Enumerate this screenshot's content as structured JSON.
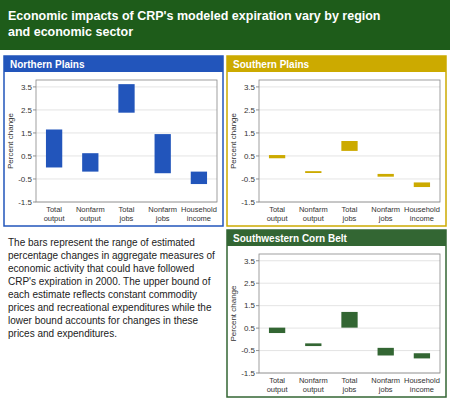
{
  "title": "Economic impacts of CRP's modeled expiration vary by region\nand economic sector",
  "annotations": [
    "The bars represent the range of estimated percentage changes in aggregate measures of economic activity that could have followed CRP's\nexpiration in 2000.  The upper bound of each estimate reflects constant commodity prices and recreational expenditures while the lower bound\naccounts for changes in these prices and expenditures."
  ],
  "chart_data": [
    {
      "type": "bar",
      "title": "Northern Plains",
      "categories": [
        "Total\noutput",
        "Nonfarm\noutput",
        "Total\njobs",
        "Nonfarm\njobs",
        "Household\nincome"
      ],
      "values": [
        [
          0.0,
          1.65
        ],
        [
          -0.18,
          0.62
        ],
        [
          2.38,
          3.62
        ],
        [
          -0.25,
          1.45
        ],
        [
          -0.72,
          -0.18
        ]
      ],
      "color": "#2255bb",
      "ylabel": "Percent change",
      "ylim": [
        -1.5,
        3.8
      ],
      "yticks": [
        -1.5,
        -0.5,
        0.5,
        1.5,
        2.5,
        3.5
      ],
      "grid": true
    },
    {
      "type": "bar",
      "title": "Southern Plains",
      "categories": [
        "Total\noutput",
        "Nonfarm\noutput",
        "Total\njobs",
        "Nonfarm\njobs",
        "Household\nincome"
      ],
      "values": [
        [
          0.4,
          0.54
        ],
        [
          -0.24,
          -0.16
        ],
        [
          0.72,
          1.15
        ],
        [
          -0.4,
          -0.28
        ],
        [
          -0.85,
          -0.65
        ]
      ],
      "color": "#ccaa00",
      "ylabel": "Percent change",
      "ylim": [
        -1.5,
        3.8
      ],
      "yticks": [
        -1.5,
        -0.5,
        0.5,
        1.5,
        2.5,
        3.5
      ],
      "grid": true
    },
    {
      "type": "bar",
      "title": "Southwestern Corn Belt",
      "categories": [
        "Total\noutput",
        "Nonfarm\noutput",
        "Total\njobs",
        "Nonfarm\njobs",
        "Household\nincome"
      ],
      "values": [
        [
          0.28,
          0.52
        ],
        [
          -0.3,
          -0.18
        ],
        [
          0.52,
          1.22
        ],
        [
          -0.72,
          -0.38
        ],
        [
          -0.85,
          -0.62
        ]
      ],
      "color": "#336633",
      "ylabel": "Percent change",
      "ylim": [
        -1.5,
        3.8
      ],
      "yticks": [
        -1.5,
        -0.5,
        0.5,
        1.5,
        2.5,
        3.5
      ],
      "grid": true
    }
  ]
}
